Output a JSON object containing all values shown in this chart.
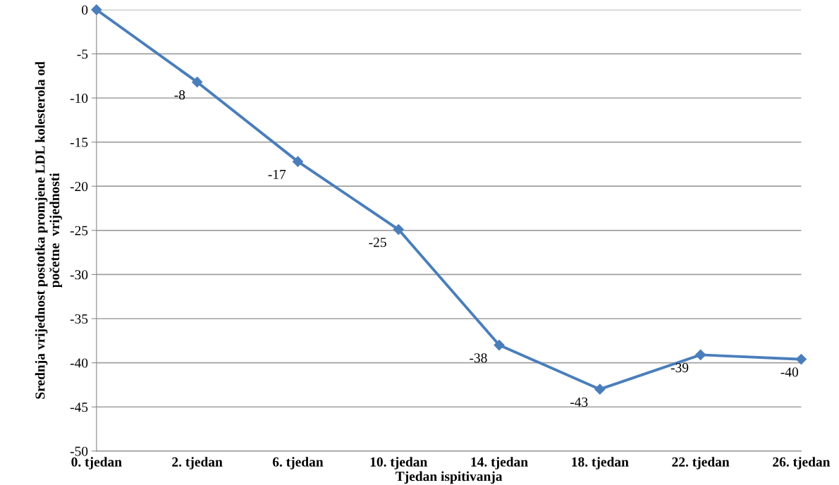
{
  "chart_data": {
    "type": "line",
    "xlabel": "Tjedan ispitivanja",
    "ylabel": "Srednja vrijednost postotka promjene LDL kolesterola od\npočetne  vrijednosti",
    "categories": [
      "0. tjedan",
      "2. tjedan",
      "6. tjedan",
      "10. tjedan",
      "14. tjedan",
      "18. tjedan",
      "22. tjedan",
      "26. tjedan"
    ],
    "series": [
      {
        "color": "#4a7ebb",
        "values": [
          0,
          -8.2,
          -17.2,
          -24.9,
          -38.0,
          -43.0,
          -39.1,
          -39.6
        ],
        "value_labels": [
          null,
          "-8",
          "-17",
          "-25",
          "-38",
          "-43",
          "-39",
          "-40"
        ]
      }
    ],
    "ylim": [
      -50,
      0
    ],
    "yticks": [
      -50,
      -45,
      -40,
      -35,
      -30,
      -25,
      -20,
      -15,
      -10,
      -5,
      0
    ],
    "grid": "y",
    "marker": "diamond",
    "line_style": "solid",
    "legend": false
  }
}
